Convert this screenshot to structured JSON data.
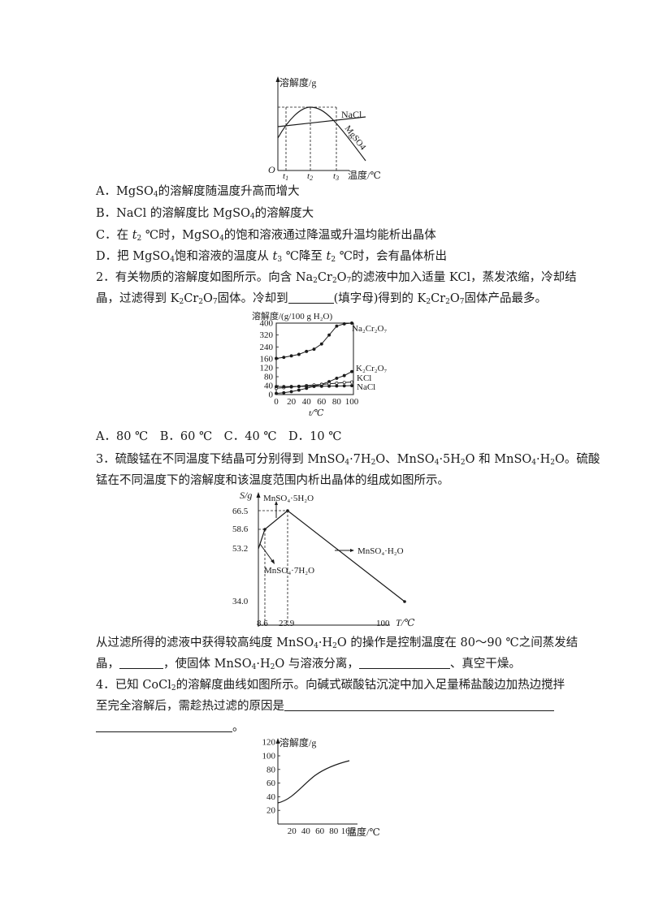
{
  "fig1": {
    "ylabel": "溶解度/g",
    "xlabel": "温度/℃",
    "origin": "O",
    "t1": "t",
    "t1_sub": "1",
    "t2": "t",
    "t2_sub": "2",
    "t3": "t",
    "t3_sub": "3",
    "nacl": "NaCl",
    "mgso4": "MgSO4"
  },
  "q1": {
    "optA_pre": "A．MgSO",
    "optA_sub": "4",
    "optA_post": "的溶解度随温度升高而增大",
    "optB_pre": "B．NaCl 的溶解度比 MgSO",
    "optB_sub": "4",
    "optB_post": "的溶解度大",
    "optC_pre": "C．在 ",
    "optC_t": "t",
    "optC_tsub": "2",
    "optC_mid": " ℃时，MgSO",
    "optC_sub": "4",
    "optC_post": "的饱和溶液通过降温或升温均能析出晶体",
    "optD_pre": "D．把 MgSO",
    "optD_sub": "4",
    "optD_mid1": "饱和溶液的温度从 ",
    "optD_t3": "t",
    "optD_t3sub": "3",
    "optD_mid2": " ℃降至 ",
    "optD_t2": "t",
    "optD_t2sub": "2",
    "optD_post": " ℃时，会有晶体析出"
  },
  "q2": {
    "s1": "2．有关物质的溶解度如图所示。向含 Na",
    "s2": "Cr",
    "s3": "O",
    "s4": "的滤液中加入适量 KCl，蒸发浓缩，冷却结",
    "s5": "晶，过滤得到 K",
    "s6": "Cr",
    "s7": "O",
    "s8": "固体。冷却到",
    "s9": "(填字母)得到的 K",
    "s10": "Cr",
    "s11": "O",
    "s12": "固体产品最多。",
    "sub2": "2",
    "sub7": "7",
    "options": "A．80 ℃　B．60 ℃　C．40 ℃　D．10 ℃"
  },
  "fig2": {
    "ylabel": "溶解度/(g/100 g H₂O)",
    "xlabel": "t/℃",
    "yticks": [
      "400",
      "320",
      "240",
      "160",
      "120",
      "80",
      "40",
      "0"
    ],
    "xticks": [
      "0",
      "20",
      "40",
      "60",
      "80",
      "100"
    ],
    "s_na2cr2o7": "Na₂Cr₂O₇",
    "s_k2cr2o7": "K₂Cr₂O₇",
    "s_kcl": "KCl",
    "s_nacl": "NaCl"
  },
  "chart_data": {
    "type": "line",
    "ylabel": "溶解度/(g/100 g H₂O)",
    "xlabel": "t/℃",
    "x": [
      0,
      10,
      20,
      30,
      40,
      50,
      60,
      70,
      80,
      90,
      100
    ],
    "series": [
      {
        "name": "Na₂Cr₂O₇",
        "values": [
          163,
          170,
          180,
          190,
          210,
          225,
          260,
          320,
          380,
          395,
          400
        ]
      },
      {
        "name": "K₂Cr₂O₇",
        "values": [
          5,
          8,
          13,
          20,
          28,
          37,
          46,
          58,
          73,
          85,
          103
        ]
      },
      {
        "name": "KCl",
        "values": [
          28,
          31,
          34,
          37,
          40,
          43,
          45,
          48,
          51,
          54,
          56
        ]
      },
      {
        "name": "NaCl",
        "values": [
          35.7,
          35.8,
          36.0,
          36.3,
          36.6,
          37.0,
          37.3,
          37.8,
          38.4,
          39.0,
          39.8
        ]
      }
    ]
  },
  "q3": {
    "l1a": "3．硫酸锰在不同温度下结晶可分别得到 MnSO",
    "l1b": "·7H",
    "l1c": "O、MnSO",
    "l1d": "·5H",
    "l1e": "O 和 MnSO",
    "l1f": "·H",
    "l1g": "O。硫酸",
    "l2": "锰在不同温度下的溶解度和该温度范围内析出晶体的组成如图所示。",
    "p1a": "从过滤所得的滤液中获得较高纯度 MnSO",
    "p1b": "·H",
    "p1c": "O 的操作是控制温度在 80～90 ℃之间蒸发结",
    "p2a": "晶，",
    "p2b": "，使固体 MnSO",
    "p2c": "·H",
    "p2d": "O 与溶液分离，",
    "p2e": "、真空干燥。",
    "sub4": "4",
    "sub2": "2"
  },
  "fig3": {
    "ylabel": "S/g",
    "xlabel": "T/℃",
    "yticks": [
      "66.5",
      "58.6",
      "53.2",
      "34.0"
    ],
    "xticks": [
      "8.6",
      "23.9",
      "100"
    ],
    "lab5": "MnSO₄·5H₂O",
    "lab7": "MnSO₄·7H₂O",
    "lab1": "MnSO₄·H₂O"
  },
  "q4": {
    "s1": "4．已知 CoCl",
    "s2": "的溶解度曲线如图所示。向碱式碳酸钴沉淀中加入足量稀盐酸边加热边搅拌",
    "s3": "至完全溶解后，需趁热过滤的原因是",
    "s4": "。",
    "sub2": "2"
  },
  "fig4": {
    "ylabel": "溶解度/g",
    "xlabel": "温度/℃",
    "yticks": [
      "120",
      "100",
      "80",
      "60",
      "40",
      "20"
    ],
    "xticks": [
      "20",
      "40",
      "60",
      "80",
      "100"
    ]
  }
}
